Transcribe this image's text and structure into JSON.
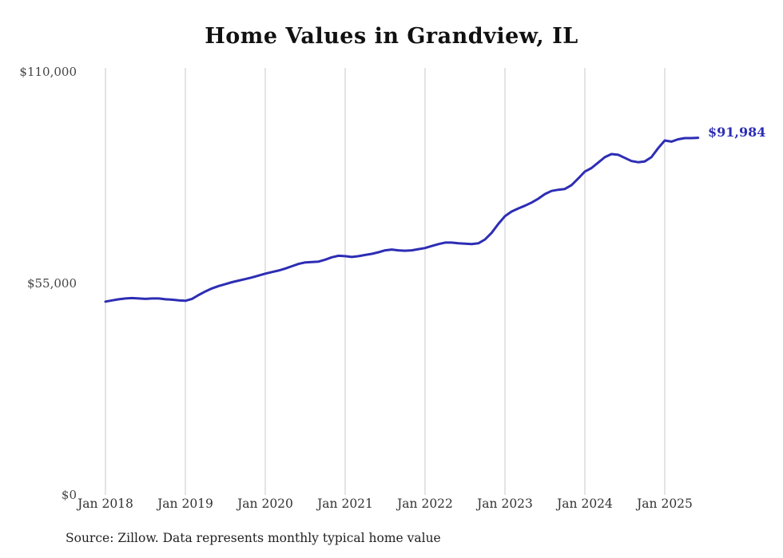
{
  "title": "Home Values in Grandview, IL",
  "chart_data": {
    "type": "line",
    "title": "Home Values in Grandview, IL",
    "frequency": "monthly",
    "start_month": "Jan 2018",
    "end_month": "Jun 2025",
    "x_tick_labels": [
      "Jan 2018",
      "Jan 2019",
      "Jan 2020",
      "Jan 2021",
      "Jan 2022",
      "Jan 2023",
      "Jan 2024",
      "Jan 2025"
    ],
    "y_tick_labels": [
      "$110,000",
      "$55,000",
      "$0"
    ],
    "ylim": [
      0,
      110000
    ],
    "grid": "vertical-only",
    "legend": "none",
    "line_color": "#2d2db5",
    "gridline_color": "#c9c9c9",
    "end_label": "$91,984",
    "end_value": 91984,
    "values": [
      49800,
      50100,
      50400,
      50600,
      50700,
      50600,
      50500,
      50600,
      50600,
      50400,
      50300,
      50100,
      50000,
      50500,
      51500,
      52400,
      53200,
      53800,
      54300,
      54800,
      55200,
      55600,
      56000,
      56500,
      57000,
      57400,
      57800,
      58300,
      58900,
      59500,
      59900,
      60000,
      60100,
      60600,
      61200,
      61600,
      61500,
      61300,
      61500,
      61800,
      62100,
      62500,
      63000,
      63200,
      63000,
      62900,
      63000,
      63300,
      63600,
      64100,
      64600,
      65000,
      65000,
      64800,
      64700,
      64600,
      64800,
      65800,
      67500,
      69800,
      71800,
      73000,
      73800,
      74500,
      75300,
      76300,
      77500,
      78300,
      78600,
      78800,
      79800,
      81500,
      83300,
      84200,
      85600,
      87000,
      87800,
      87600,
      86800,
      86000,
      85700,
      85900,
      87000,
      89300,
      91300,
      91000,
      91600,
      91900,
      91900,
      91984
    ]
  },
  "footer": {
    "source": "Source: Zillow. Data represents monthly typical home value"
  }
}
